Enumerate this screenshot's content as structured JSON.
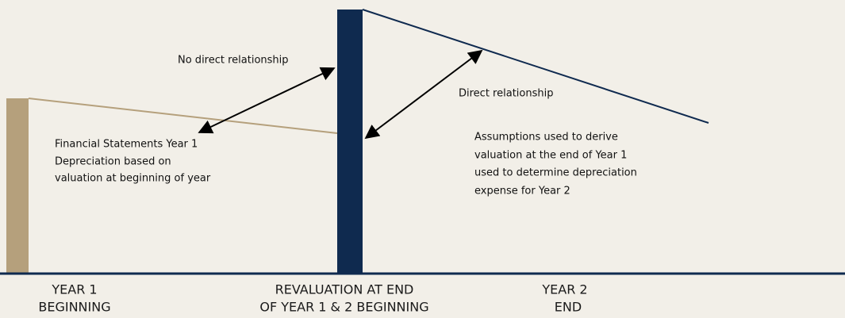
{
  "annotations": {
    "left_arrow": "No direct relationship",
    "right_arrow": "Direct relationship"
  },
  "left_note": [
    "Financial Statements Year 1",
    "Depreciation based on",
    "valuation at beginning of year"
  ],
  "right_note": [
    "Assumptions used to derive",
    "valuation at the end of Year 1",
    "used to determine depreciation",
    "expense for Year 2"
  ],
  "timeline": [
    {
      "lines": [
        "YEAR 1",
        "BEGINNING"
      ]
    },
    {
      "lines": [
        "REVALUATION AT END",
        "OF YEAR 1 & 2 BEGINNING"
      ]
    },
    {
      "lines": [
        "YEAR 2",
        "END"
      ]
    }
  ]
}
